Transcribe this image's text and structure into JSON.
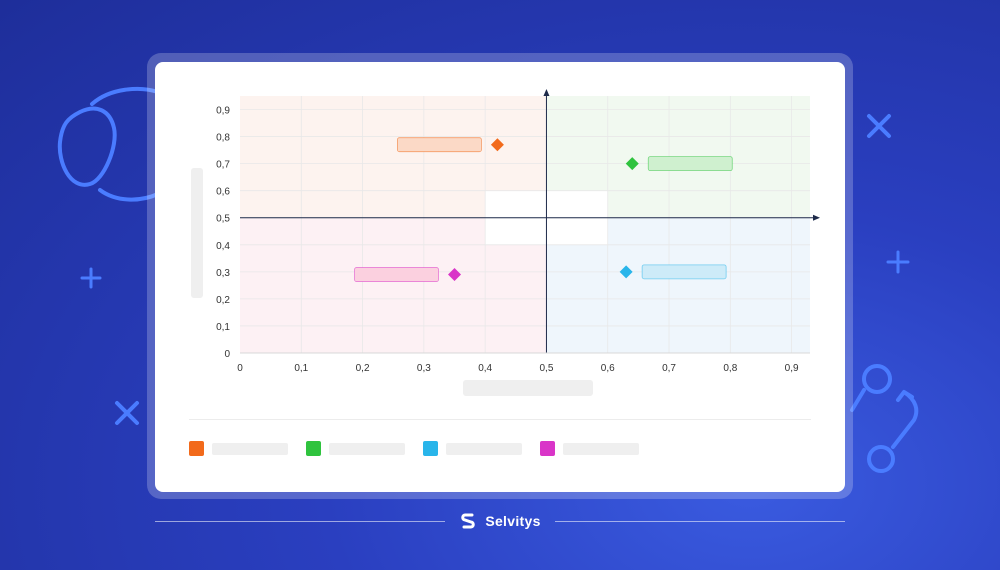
{
  "brand": {
    "name": "Selvitys",
    "logo_icon": "s-logo-icon"
  },
  "colors": {
    "background": "#2a3fc0",
    "accent": "#4a7cff",
    "quadrant_top_left": "#fdf3ef",
    "quadrant_top_right": "#f1f9f0",
    "quadrant_bottom_left": "#fdf1f4",
    "quadrant_bottom_right": "#eff6fc"
  },
  "chart_data": {
    "type": "scatter",
    "title": "",
    "xlabel": "",
    "ylabel": "",
    "xlim": [
      0,
      0.93
    ],
    "ylim": [
      0,
      0.95
    ],
    "x_ticks": [
      "0",
      "0,1",
      "0,2",
      "0,3",
      "0,4",
      "0,5",
      "0,6",
      "0,7",
      "0,8",
      "0,9"
    ],
    "y_ticks": [
      "0",
      "0,1",
      "0,2",
      "0,3",
      "0,4",
      "0,5",
      "0,6",
      "0,7",
      "0,8",
      "0,9"
    ],
    "axis_cross": {
      "x": 0.5,
      "y": 0.5
    },
    "grid": true,
    "legend_position": "bottom-left",
    "series": [
      {
        "x": 0.42,
        "y": 0.77,
        "color": "#f26a1b",
        "fill": "#fbd9c6",
        "marker": "diamond",
        "label_side": "left"
      },
      {
        "x": 0.64,
        "y": 0.7,
        "color": "#2fc33e",
        "fill": "#cff0cf",
        "marker": "diamond",
        "label_side": "right"
      },
      {
        "x": 0.63,
        "y": 0.3,
        "color": "#29b5ea",
        "fill": "#cdebf8",
        "marker": "diamond",
        "label_side": "right"
      },
      {
        "x": 0.35,
        "y": 0.29,
        "color": "#d935c8",
        "fill": "#fbd0df",
        "marker": "diamond",
        "label_side": "left"
      }
    ]
  }
}
